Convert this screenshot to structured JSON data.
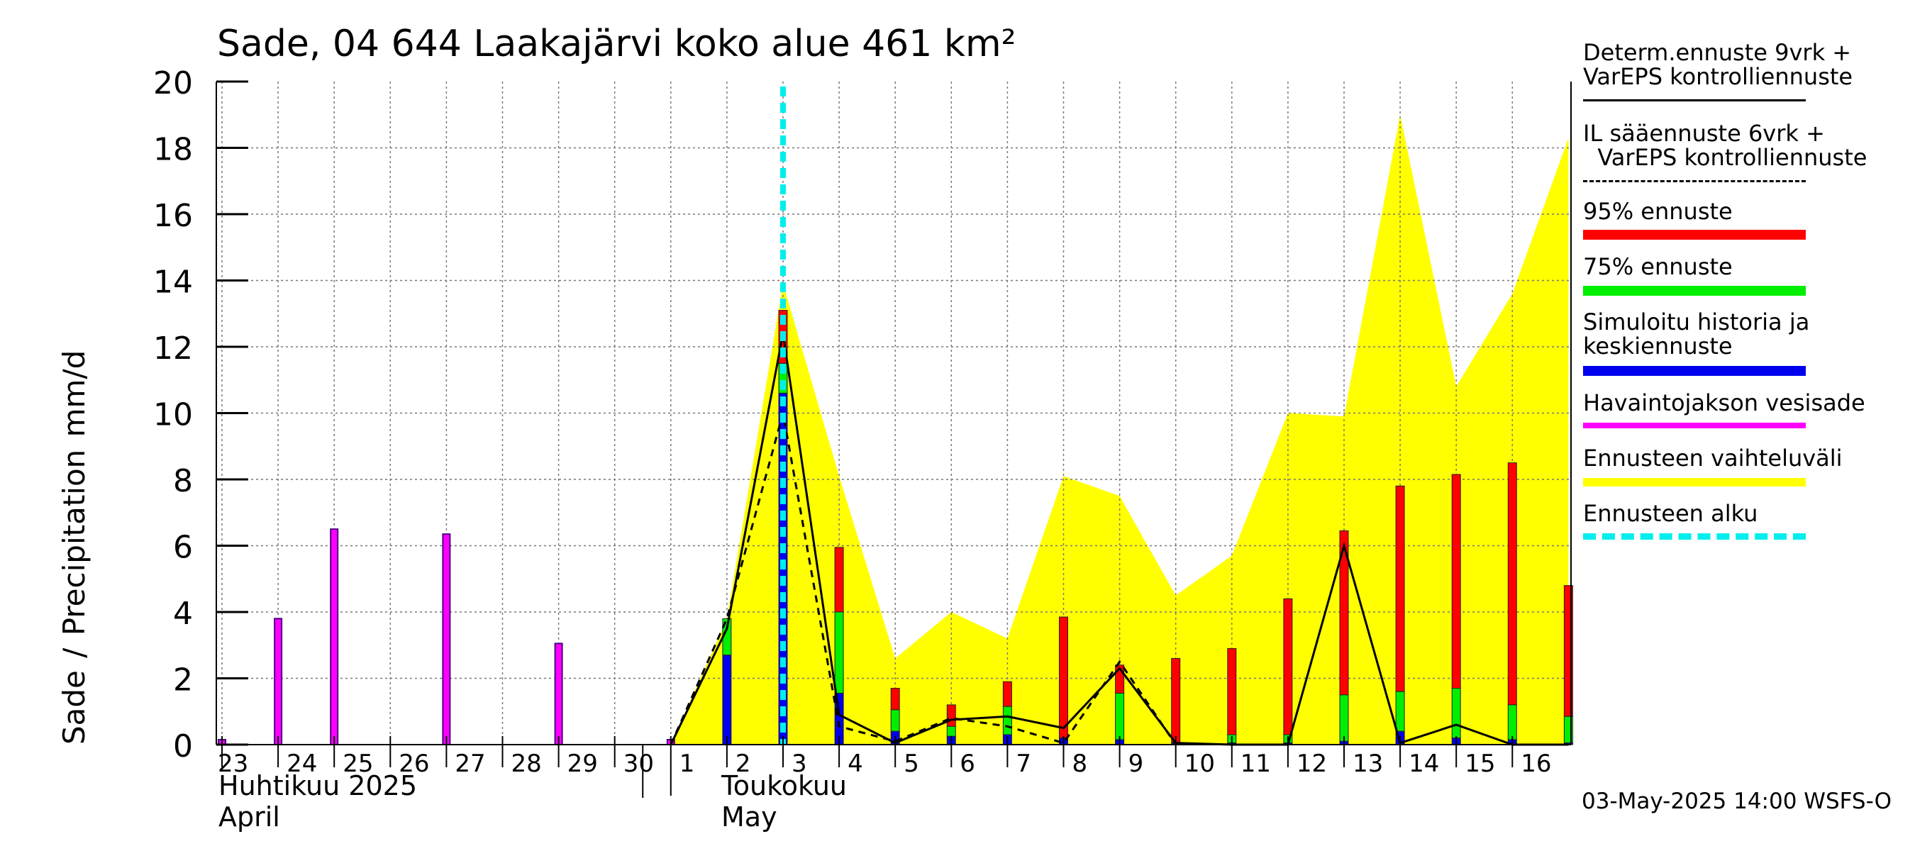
{
  "title": "Sade, 04 644 Laakajärvi koko alue 461 km²",
  "ylabel": "Sade / Precipitation   mm/d",
  "months": {
    "april_fi": "Huhtikuu  2025",
    "april_en": "April",
    "may_fi": "Toukokuu",
    "may_en": "May"
  },
  "footer": "03-May-2025 14:00 WSFS-O",
  "legend": [
    {
      "line1": "Determ.ennuste 9vrk +",
      "line2": "VarEPS kontrolliennuste",
      "style": "solid",
      "color": "#000000"
    },
    {
      "line1": "IL sääennuste 6vrk  +",
      "line2": "  VarEPS kontrolliennuste",
      "style": "dashed",
      "color": "#000000"
    },
    {
      "line1": "95% ennuste",
      "line2": "",
      "style": "thick",
      "color": "#ff0000"
    },
    {
      "line1": "75% ennuste",
      "line2": "",
      "style": "thick",
      "color": "#00ee00"
    },
    {
      "line1": "Simuloitu historia ja",
      "line2": "keskiennuste",
      "style": "thick",
      "color": "#0000ee"
    },
    {
      "line1": "Havaintojakson vesisade",
      "line2": "",
      "style": "thick",
      "color": "#ff00ff"
    },
    {
      "line1": "Ennusteen vaihteluväli",
      "line2": "",
      "style": "thick",
      "color": "#ffff00"
    },
    {
      "line1": "Ennusteen alku",
      "line2": "",
      "style": "dotted",
      "color": "#00eeee"
    }
  ],
  "chart_data": {
    "type": "bar",
    "ylim": [
      0,
      20
    ],
    "yticks": [
      0,
      2,
      4,
      6,
      8,
      10,
      12,
      14,
      16,
      18,
      20
    ],
    "x_day_range": [
      0,
      23.5
    ],
    "day_labels": [
      "23",
      "24",
      "25",
      "26",
      "27",
      "28",
      "29",
      "30",
      "1",
      "2",
      "3",
      "4",
      "5",
      "6",
      "7",
      "8",
      "9",
      "10",
      "11",
      "12",
      "13",
      "14",
      "15",
      "16"
    ],
    "forecast_start_day": 10,
    "observed": {
      "name": "Havaintojakson vesisade",
      "color": "#ff00ff",
      "points": [
        [
          0,
          0.15
        ],
        [
          1,
          3.8
        ],
        [
          2,
          6.5
        ],
        [
          3,
          0
        ],
        [
          4,
          6.35
        ],
        [
          5,
          0
        ],
        [
          6,
          3.05
        ],
        [
          7,
          0
        ],
        [
          8,
          0.15
        ]
      ]
    },
    "blue": {
      "name": "Simuloitu historia ja keskiennuste",
      "color": "#0000ee",
      "points": [
        [
          9,
          2.7
        ],
        [
          10,
          10.6
        ],
        [
          11,
          1.55
        ],
        [
          12,
          0.4
        ],
        [
          13,
          0.25
        ],
        [
          14,
          0.3
        ],
        [
          15,
          0.2
        ],
        [
          16,
          0.15
        ],
        [
          17,
          0.05
        ],
        [
          18,
          0.05
        ],
        [
          19,
          0.05
        ],
        [
          20,
          0.1
        ],
        [
          21,
          0.4
        ],
        [
          22,
          0.2
        ],
        [
          23,
          0.15
        ],
        [
          24,
          0.05
        ]
      ]
    },
    "p75": {
      "name": "75% ennuste",
      "color": "#00ee00",
      "points": [
        [
          9,
          3.8
        ],
        [
          10,
          11.5
        ],
        [
          11,
          4.0
        ],
        [
          12,
          1.05
        ],
        [
          13,
          0.55
        ],
        [
          14,
          1.15
        ],
        [
          15,
          0.15
        ],
        [
          16,
          1.55
        ],
        [
          17,
          0.05
        ],
        [
          18,
          0.3
        ],
        [
          19,
          0.3
        ],
        [
          20,
          1.5
        ],
        [
          21,
          1.6
        ],
        [
          22,
          1.7
        ],
        [
          23,
          1.2
        ],
        [
          24,
          0.85
        ]
      ]
    },
    "p95": {
      "name": "95% ennuste",
      "color": "#ff0000",
      "points": [
        [
          9,
          3.8
        ],
        [
          10,
          13.1
        ],
        [
          11,
          5.95
        ],
        [
          12,
          1.7
        ],
        [
          13,
          1.2
        ],
        [
          14,
          1.9
        ],
        [
          15,
          3.85
        ],
        [
          16,
          2.4
        ],
        [
          17,
          2.6
        ],
        [
          18,
          2.9
        ],
        [
          19,
          4.4
        ],
        [
          20,
          6.45
        ],
        [
          21,
          7.8
        ],
        [
          22,
          8.15
        ],
        [
          23,
          8.5
        ],
        [
          24,
          4.8
        ]
      ]
    },
    "range": {
      "name": "Ennusteen vaihteluväli",
      "color": "#ffff00",
      "upper": [
        [
          8,
          0
        ],
        [
          9,
          3.8
        ],
        [
          10,
          13.9
        ],
        [
          11,
          8.1
        ],
        [
          12,
          2.6
        ],
        [
          13,
          4.0
        ],
        [
          14,
          3.2
        ],
        [
          15,
          8.1
        ],
        [
          16,
          7.5
        ],
        [
          17,
          4.5
        ],
        [
          18,
          5.7
        ],
        [
          19,
          10.0
        ],
        [
          20,
          9.9
        ],
        [
          21,
          19.0
        ],
        [
          22,
          10.8
        ],
        [
          23,
          13.6
        ],
        [
          24,
          18.3
        ]
      ],
      "lower": [
        [
          24,
          0
        ],
        [
          8,
          0
        ]
      ]
    },
    "solid_line": {
      "name": "Determ.ennuste 9vrk + VarEPS kontrolliennuste",
      "color": "#000000",
      "points": [
        [
          8,
          0
        ],
        [
          9,
          3.5
        ],
        [
          10,
          12.4
        ],
        [
          11,
          0.9
        ],
        [
          12,
          0.05
        ],
        [
          13,
          0.75
        ],
        [
          14,
          0.85
        ],
        [
          15,
          0.5
        ],
        [
          16,
          2.3
        ],
        [
          17,
          0.05
        ],
        [
          18,
          0
        ],
        [
          19,
          0
        ],
        [
          20,
          6.0
        ],
        [
          21,
          0.05
        ],
        [
          22,
          0.6
        ],
        [
          23,
          0
        ],
        [
          24,
          0
        ]
      ]
    },
    "dashed_line": {
      "name": "IL sääennuste 6vrk + VarEPS kontrolliennuste",
      "color": "#000000",
      "points": [
        [
          8,
          0
        ],
        [
          9,
          3.8
        ],
        [
          10,
          10.0
        ],
        [
          11,
          0.55
        ],
        [
          12,
          0.1
        ],
        [
          13,
          0.8
        ],
        [
          14,
          0.55
        ],
        [
          15,
          0.05
        ],
        [
          16,
          2.5
        ],
        [
          17,
          0
        ]
      ]
    }
  }
}
